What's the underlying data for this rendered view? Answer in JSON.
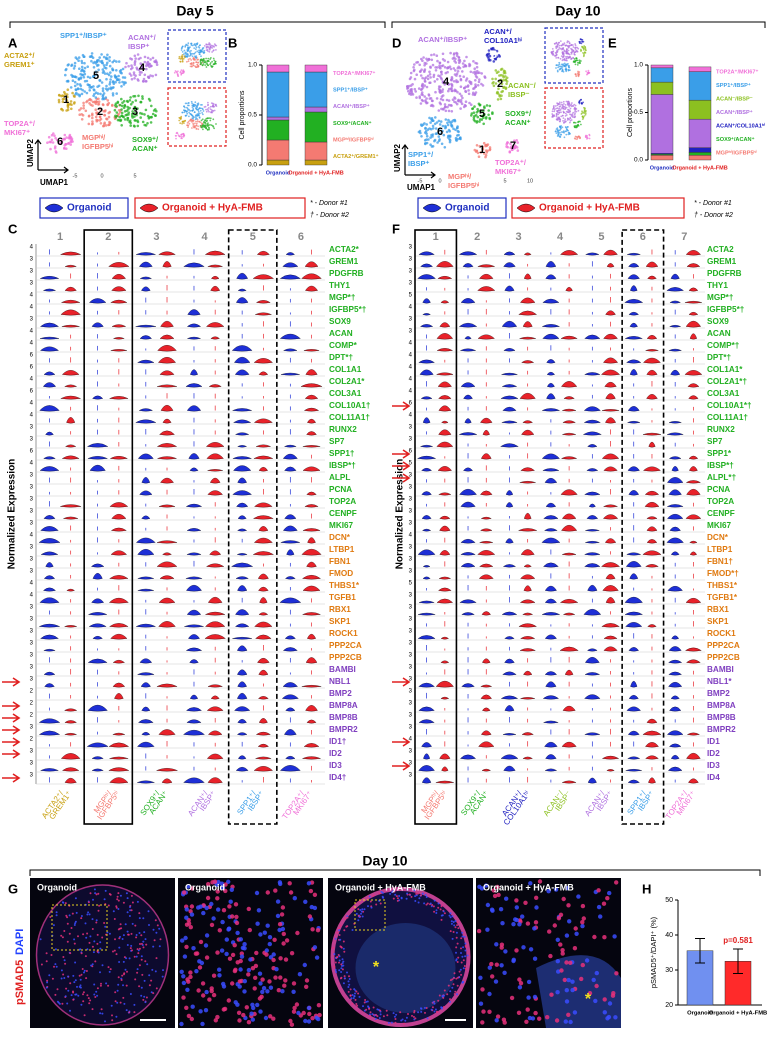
{
  "headers": {
    "day5": "Day 5",
    "day10": "Day 10"
  },
  "panel_letters": {
    "a": "A",
    "b": "B",
    "c": "C",
    "d": "D",
    "e": "E",
    "f": "F",
    "g": "G",
    "h": "H"
  },
  "panel_a": {
    "axis_x": "UMAP1",
    "axis_y": "UMAP2",
    "xtick_labels": [
      "-5",
      "0",
      "5"
    ],
    "clusters": [
      {
        "number": 1,
        "label": [
          "ACTA2⁺/",
          "GREM1⁺"
        ],
        "color": "#c8a010"
      },
      {
        "number": 2,
        "label": [
          "MGPʰⁱ/",
          "IGFBP5ʰⁱ"
        ],
        "color": "#f47a72"
      },
      {
        "number": 3,
        "label": [
          "SOX9⁺/",
          "ACAN⁺"
        ],
        "color": "#22b022"
      },
      {
        "number": 4,
        "label": [
          "ACAN⁺/",
          "IBSP⁺"
        ],
        "color": "#b070e0"
      },
      {
        "number": 5,
        "label": [
          "SPP1⁺/IBSP⁺"
        ],
        "color": "#3a9ee8"
      },
      {
        "number": 6,
        "label": [
          "TOP2A⁺/",
          "MKI67⁺"
        ],
        "color": "#f070d8"
      }
    ]
  },
  "panel_b": {
    "type": "bar",
    "stacked": true,
    "ylabel": "Cell proportions",
    "categories": [
      "Organoid",
      "Organoid + HyA-FMB"
    ],
    "category_colors": [
      "#2030c0",
      "#e02020"
    ],
    "ylim": [
      0,
      1
    ],
    "yticks": [
      {
        "value": 0,
        "label": "0.0"
      },
      {
        "value": 0.5,
        "label": "0.5"
      },
      {
        "value": 1,
        "label": "1.0"
      }
    ],
    "series": [
      {
        "name": "ACTA2⁺/GREM1⁺",
        "color": "#c8a010",
        "values": [
          0.05,
          0.05
        ]
      },
      {
        "name": "MGPʰⁱ/IGFBP5ʰⁱ",
        "color": "#f47a72",
        "values": [
          0.2,
          0.18
        ]
      },
      {
        "name": "SOX9⁺/ACAN⁺",
        "color": "#22b022",
        "values": [
          0.2,
          0.3
        ]
      },
      {
        "name": "ACAN⁺/IBSP⁺",
        "color": "#b070e0",
        "values": [
          0.03,
          0.05
        ]
      },
      {
        "name": "SPP1⁺/IBSP⁺",
        "color": "#3a9ee8",
        "values": [
          0.45,
          0.35
        ]
      },
      {
        "name": "TOP2A⁺/MKI67⁺",
        "color": "#f070d8",
        "values": [
          0.07,
          0.07
        ]
      }
    ]
  },
  "panel_d": {
    "axis_x": "UMAP1",
    "axis_y": "UMAP2",
    "xtick_labels": [
      "-5",
      "0",
      "5",
      "10"
    ],
    "clusters": [
      {
        "number": 1,
        "label": [
          "MGPʰⁱ/",
          "IGFBP5ʰⁱ"
        ],
        "color": "#f47a72"
      },
      {
        "number": 2,
        "label": [
          "ACAN⁻/",
          "IBSP⁻"
        ],
        "color": "#8cc020"
      },
      {
        "number": 3,
        "label": [
          "ACAN⁺/",
          "COL10A1ʰⁱ"
        ],
        "color": "#2020c0"
      },
      {
        "number": 4,
        "label": [
          "ACAN⁺/IBSP⁺"
        ],
        "color": "#b070e0"
      },
      {
        "number": 5,
        "label": [
          "SOX9⁺/",
          "ACAN⁺"
        ],
        "color": "#22b022"
      },
      {
        "number": 6,
        "label": [
          "SPP1⁺/",
          "IBSP⁺"
        ],
        "color": "#3a9ee8"
      },
      {
        "number": 7,
        "label": [
          "TOP2A⁺/",
          "MKI67⁺"
        ],
        "color": "#f070d8"
      }
    ]
  },
  "panel_e": {
    "type": "bar",
    "stacked": true,
    "ylabel": "Cell proportions",
    "categories": [
      "Organoid",
      "Organoid + HyA-FMB"
    ],
    "category_colors": [
      "#2030c0",
      "#e02020"
    ],
    "ylim": [
      0,
      1
    ],
    "yticks": [
      {
        "value": 0,
        "label": "0.0"
      },
      {
        "value": 0.5,
        "label": "0.5"
      },
      {
        "value": 1,
        "label": "1.0"
      }
    ],
    "series": [
      {
        "name": "MGPʰⁱ/IGFBP5ʰⁱ",
        "color": "#f47a72",
        "values": [
          0.05,
          0.05
        ]
      },
      {
        "name": "SOX9⁺/ACAN⁺",
        "color": "#22b022",
        "values": [
          0.01,
          0.03
        ]
      },
      {
        "name": "ACAN⁺/COL10A1ʰⁱ",
        "color": "#2020c0",
        "values": [
          0.01,
          0.05
        ]
      },
      {
        "name": "ACAN⁺/IBSP⁺",
        "color": "#b070e0",
        "values": [
          0.62,
          0.3
        ]
      },
      {
        "name": "ACAN⁻/IBSP⁻",
        "color": "#8cc020",
        "values": [
          0.13,
          0.2
        ]
      },
      {
        "name": "SPP1⁺/IBSP⁺",
        "color": "#3a9ee8",
        "values": [
          0.15,
          0.3
        ]
      },
      {
        "name": "TOP2A⁺/MKI67⁺",
        "color": "#f070d8",
        "values": [
          0.03,
          0.05
        ]
      }
    ]
  },
  "violin_legend": {
    "organoid": "Organoid",
    "treated": "Organoid + HyA-FMB",
    "donor1": "* - Donor #1",
    "donor2": "† - Donor #2",
    "ylabel": "Normalized Expression"
  },
  "panel_c": {
    "columns": [
      1,
      2,
      3,
      4,
      5,
      6
    ],
    "column_labels": [
      [
        "ACTA2⁺/",
        "GREM1⁺"
      ],
      [
        "MGPʰⁱ/",
        "IGFBP5ʰⁱ"
      ],
      [
        "SOX9⁺/",
        "ACAN⁺"
      ],
      [
        "ACAN⁺/",
        "IBSP⁺"
      ],
      [
        "SPP1⁺/",
        "IBSP⁺"
      ],
      [
        "TOP2A⁺/",
        "MKI67⁺"
      ]
    ],
    "column_colors": [
      "#c8a010",
      "#f47a72",
      "#22b022",
      "#b070e0",
      "#3a9ee8",
      "#f070d8"
    ],
    "gene_groups": [
      {
        "color": "#22b022",
        "genes": [
          "ACTA2*",
          "GREM1",
          "PDGFRB",
          "THY1",
          "MGP*†",
          "IGFBP5*†",
          "SOX9",
          "ACAN",
          "COMP*",
          "DPT*†",
          "COL1A1",
          "COL2A1*",
          "COL3A1",
          "COL10A1†",
          "COL11A1†",
          "RUNX2",
          "SP7",
          "SPP1†",
          "IBSP*†",
          "ALPL",
          "PCNA",
          "TOP2A",
          "CENPF",
          "MKI67"
        ]
      },
      {
        "color": "#e07a10",
        "genes": [
          "DCN*",
          "LTBP1",
          "FBN1",
          "FMOD",
          "THBS1*",
          "TGFB1",
          "RBX1",
          "SKP1",
          "ROCK1",
          "PPP2CA",
          "PPP2CB"
        ]
      },
      {
        "color": "#8040c0",
        "genes": [
          "BAMBI",
          "NBL1",
          "BMP2",
          "BMP8A",
          "BMP8B",
          "BMPR2",
          "ID1†",
          "ID2",
          "ID3",
          "ID4†"
        ]
      }
    ],
    "row_max": [
      4,
      3,
      3,
      3,
      4,
      4,
      3,
      4,
      4,
      6,
      6,
      4,
      6,
      4,
      4,
      3,
      3,
      6,
      4,
      3,
      3,
      3,
      3,
      3,
      4,
      3,
      3,
      3,
      4,
      4,
      3,
      3,
      3,
      3,
      3,
      3,
      3,
      2,
      2,
      2,
      3,
      2,
      3,
      3,
      3
    ]
  },
  "panel_f": {
    "columns": [
      1,
      2,
      3,
      4,
      5,
      6,
      7
    ],
    "column_labels": [
      [
        "MGPʰⁱ/",
        "IGFBP5ʰⁱ"
      ],
      [
        "SOX9⁺/",
        "ACAN⁺"
      ],
      [
        "ACAN⁺/",
        "COL10A1ʰⁱ"
      ],
      [
        "ACAN⁻/",
        "IBSP⁻"
      ],
      [
        "ACAN⁺/",
        "IBSP⁺"
      ],
      [
        "SPP1⁺/",
        "IBSP⁺"
      ],
      [
        "TOP2A⁺/",
        "MKI67⁺"
      ]
    ],
    "column_colors": [
      "#f47a72",
      "#22b022",
      "#2020c0",
      "#8cc020",
      "#b070e0",
      "#3a9ee8",
      "#f070d8"
    ],
    "gene_groups": [
      {
        "color": "#22b022",
        "genes": [
          "ACTA2",
          "GREM1",
          "PDGFRB",
          "THY1",
          "MGP*†",
          "IGFBP5*†",
          "SOX9",
          "ACAN",
          "COMP*†",
          "DPT*†",
          "COL1A1*",
          "COL2A1*†",
          "COL3A1",
          "COL10A1*†",
          "COL11A1†",
          "RUNX2",
          "SP7",
          "SPP1*",
          "IBSP*†",
          "ALPL*†",
          "PCNA",
          "TOP2A",
          "CENPF",
          "MKI67"
        ]
      },
      {
        "color": "#e07a10",
        "genes": [
          "DCN*",
          "LTBP1",
          "FBN1†",
          "FMOD*†",
          "THBS1*",
          "TGFB1*",
          "RBX1",
          "SKP1",
          "ROCK1",
          "PPP2CA",
          "PPP2CB"
        ]
      },
      {
        "color": "#8040c0",
        "genes": [
          "BAMBI",
          "NBL1*",
          "BMP2",
          "BMP8A",
          "BMP8B",
          "BMPR2",
          "ID1",
          "ID2",
          "ID3",
          "ID4"
        ]
      }
    ],
    "row_max": [
      3,
      3,
      3,
      3,
      5,
      4,
      3,
      3,
      4,
      4,
      4,
      4,
      4,
      6,
      4,
      3,
      3,
      6,
      5,
      3,
      3,
      3,
      3,
      3,
      4,
      3,
      3,
      3,
      5,
      3,
      3,
      3,
      3,
      3,
      3,
      3,
      3,
      3,
      3,
      3,
      3,
      4,
      3,
      3,
      3
    ]
  },
  "panel_g": {
    "stain_red": "pSMAD5",
    "stain_blue": "DAPI",
    "images": [
      "Organoid",
      "Organoid",
      "Organoid + HyA-FMB",
      "Organoid + HyA-FMB"
    ],
    "marker": "*"
  },
  "panel_h": {
    "type": "bar",
    "categories": [
      "Organoid",
      "Organoid + HyA-FMB"
    ],
    "colors": [
      "#7090f0",
      "#ff2a2a"
    ],
    "category_colors": [
      "#000000",
      "#000000"
    ],
    "values": [
      35.5,
      32.5
    ],
    "errors": [
      3.5,
      3.5
    ],
    "ylim": [
      20,
      50
    ],
    "yticks": [
      20,
      30,
      40,
      50
    ],
    "ylabel": "pSMAD5⁺/DAPI⁺ (%)",
    "annotation": "p=0.581"
  }
}
